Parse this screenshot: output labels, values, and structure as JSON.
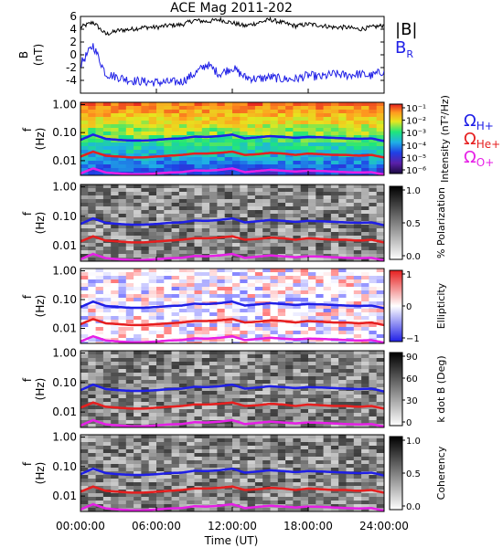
{
  "title": "ACE Mag 2011-202",
  "xlabel": "Time (UT)",
  "x_ticks": [
    "00:00:00",
    "06:00:00",
    "12:00:00",
    "18:00:00",
    "24:00:00"
  ],
  "freq_ticks": [
    "1.00",
    "0.10",
    "0.01"
  ],
  "colors": {
    "b_total": "#000000",
    "b_r": "#1f1fe6",
    "omega_h": "#1f1fe6",
    "omega_he": "#e61f1f",
    "omega_o": "#e61fe6"
  },
  "legend_b": {
    "total": "|B|",
    "radial": "B",
    "radial_sub": "R"
  },
  "legend_omega": {
    "symbol": "Ω",
    "h": "H+",
    "he": "He+",
    "o": "O+"
  },
  "chart_data": [
    {
      "type": "line",
      "name": "magnetic-field",
      "ylabel": "B (nT)",
      "y_ticks": [
        "6",
        "4",
        "2",
        "0",
        "-2",
        "-4"
      ],
      "ylim": [
        -6,
        6
      ],
      "xlim": [
        0,
        24
      ],
      "series": [
        {
          "name": "|B|",
          "x": [
            0,
            1,
            2,
            3,
            4,
            5,
            6,
            7,
            8,
            9,
            10,
            11,
            12,
            13,
            14,
            15,
            16,
            17,
            18,
            19,
            20,
            21,
            22,
            23,
            24
          ],
          "values": [
            4.3,
            5.1,
            3.2,
            3.8,
            4.0,
            4.3,
            4.3,
            4.6,
            4.7,
            5.4,
            5.2,
            5.5,
            5.0,
            4.5,
            5.0,
            5.5,
            5.0,
            4.5,
            4.8,
            4.6,
            4.3,
            4.3,
            4.0,
            4.3,
            4.6
          ]
        },
        {
          "name": "B_R",
          "x": [
            0,
            1,
            2,
            3,
            4,
            5,
            6,
            7,
            8,
            9,
            10,
            11,
            12,
            13,
            14,
            15,
            16,
            17,
            18,
            19,
            20,
            21,
            22,
            23,
            24
          ],
          "values": [
            -1.5,
            1.5,
            -3.0,
            -3.5,
            -4.0,
            -4.2,
            -4.3,
            -4.3,
            -4.2,
            -3.0,
            -1.5,
            -3.0,
            -2.0,
            -3.5,
            -3.8,
            -3.5,
            -3.8,
            -3.8,
            -3.2,
            -3.5,
            -3.0,
            -3.2,
            -3.0,
            -3.3,
            -2.5
          ]
        }
      ]
    },
    {
      "type": "heatmap",
      "name": "intensity",
      "ylabel": "f (Hz)",
      "colorbar_label": "Intensity (nT²/Hz)",
      "colorbar_ticks": [
        "10⁻¹",
        "10⁻²",
        "10⁻³",
        "10⁻⁴",
        "10⁻⁵",
        "10⁻⁶"
      ],
      "colormap": "rainbow"
    },
    {
      "type": "heatmap",
      "name": "polarization",
      "ylabel": "f (Hz)",
      "colorbar_label": "% Polarization",
      "colorbar_ticks": [
        "1.0",
        "0.5",
        "0.0"
      ],
      "colormap": "grayscale"
    },
    {
      "type": "heatmap",
      "name": "ellipticity",
      "ylabel": "f (Hz)",
      "colorbar_label": "Ellipticity",
      "colorbar_ticks": [
        "1",
        "0",
        "−1"
      ],
      "colormap": "blue-white-red"
    },
    {
      "type": "heatmap",
      "name": "k-dot-b",
      "ylabel": "f (Hz)",
      "colorbar_label": "k dot B (Deg)",
      "colorbar_ticks": [
        "90",
        "60",
        "30",
        "0"
      ],
      "colormap": "grayscale"
    },
    {
      "type": "heatmap",
      "name": "coherency",
      "ylabel": "f (Hz)",
      "colorbar_label": "Coherency",
      "colorbar_ticks": [
        "1.0",
        "0.5",
        "0.0"
      ],
      "colormap": "grayscale"
    }
  ],
  "gyrofrequency_lines": {
    "x": [
      0,
      1,
      2,
      3,
      4,
      5,
      6,
      7,
      8,
      9,
      10,
      11,
      12,
      13,
      14,
      15,
      16,
      17,
      18,
      19,
      20,
      21,
      22,
      23,
      24
    ],
    "omega_h": [
      0.055,
      0.085,
      0.06,
      0.055,
      0.052,
      0.052,
      0.055,
      0.06,
      0.062,
      0.072,
      0.07,
      0.075,
      0.085,
      0.062,
      0.068,
      0.075,
      0.07,
      0.065,
      0.07,
      0.068,
      0.065,
      0.062,
      0.06,
      0.062,
      0.05
    ],
    "omega_he": [
      0.014,
      0.021,
      0.015,
      0.014,
      0.013,
      0.013,
      0.014,
      0.015,
      0.016,
      0.018,
      0.018,
      0.019,
      0.021,
      0.016,
      0.017,
      0.019,
      0.018,
      0.016,
      0.018,
      0.017,
      0.016,
      0.016,
      0.015,
      0.016,
      0.013
    ],
    "omega_o": [
      0.0035,
      0.0053,
      0.0038,
      0.0035,
      0.0033,
      0.0033,
      0.0035,
      0.0038,
      0.0039,
      0.0045,
      0.0044,
      0.0047,
      0.0053,
      0.0039,
      0.0043,
      0.0047,
      0.0044,
      0.0041,
      0.0044,
      0.0043,
      0.0041,
      0.0039,
      0.0038,
      0.0039,
      0.0032
    ]
  }
}
